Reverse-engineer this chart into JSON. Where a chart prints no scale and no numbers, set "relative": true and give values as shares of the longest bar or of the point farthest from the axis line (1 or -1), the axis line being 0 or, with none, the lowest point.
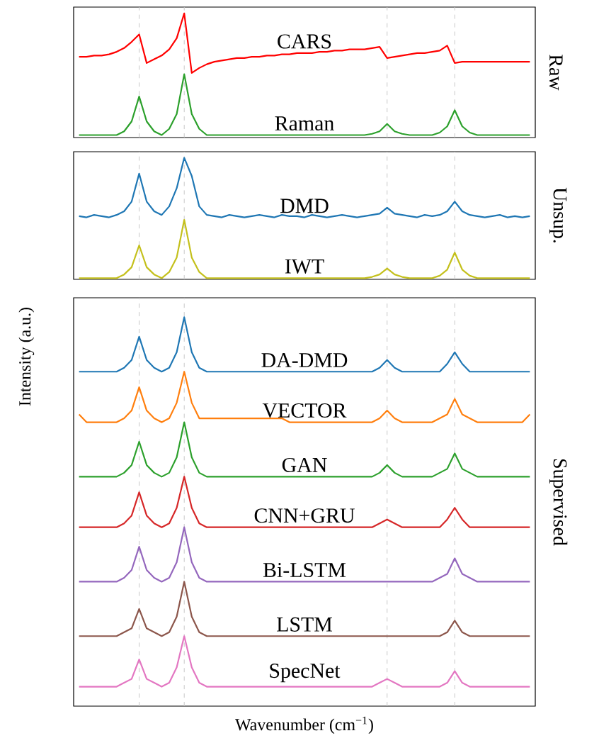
{
  "chart_data": [
    {
      "type": "line",
      "relative": true,
      "grid": "x",
      "y2label": "Raw",
      "categories": [
        null,
        null,
        null,
        null,
        null,
        null,
        null,
        null,
        null,
        null,
        null,
        null,
        null,
        null,
        null,
        null,
        null,
        null,
        null,
        null,
        null,
        null,
        null,
        null,
        null,
        null,
        null,
        null,
        null,
        null,
        null,
        null,
        null,
        null,
        null,
        null,
        null,
        null,
        null,
        null,
        null,
        null,
        null,
        null,
        null,
        null,
        null,
        null,
        null,
        null,
        null,
        null,
        null,
        null,
        null,
        null,
        null,
        null,
        null,
        null,
        null
      ],
      "series": [
        {
          "name": "CARS",
          "color": "#ff0000",
          "values": [
            0.65,
            0.65,
            0.66,
            0.66,
            0.67,
            0.69,
            0.72,
            0.77,
            0.83,
            0.6,
            0.63,
            0.66,
            0.71,
            0.8,
            1.0,
            0.52,
            0.56,
            0.59,
            0.61,
            0.62,
            0.63,
            0.64,
            0.64,
            0.65,
            0.65,
            0.66,
            0.66,
            0.67,
            0.67,
            0.68,
            0.68,
            0.68,
            0.69,
            0.69,
            0.7,
            0.7,
            0.71,
            0.71,
            0.71,
            0.72,
            0.73,
            0.64,
            0.65,
            0.66,
            0.67,
            0.68,
            0.68,
            0.69,
            0.7,
            0.74,
            0.6,
            0.61,
            0.61,
            0.61,
            0.61,
            0.61,
            0.61,
            0.61,
            0.61,
            0.61,
            0.61
          ]
        },
        {
          "name": "Raman",
          "color": "#2ca02c",
          "values": [
            0.02,
            0.02,
            0.02,
            0.02,
            0.02,
            0.02,
            0.05,
            0.13,
            0.33,
            0.13,
            0.05,
            0.02,
            0.07,
            0.19,
            0.51,
            0.19,
            0.07,
            0.02,
            0.02,
            0.02,
            0.02,
            0.02,
            0.02,
            0.02,
            0.02,
            0.02,
            0.02,
            0.02,
            0.02,
            0.02,
            0.02,
            0.02,
            0.02,
            0.02,
            0.02,
            0.02,
            0.02,
            0.02,
            0.02,
            0.03,
            0.05,
            0.11,
            0.05,
            0.03,
            0.02,
            0.02,
            0.02,
            0.02,
            0.04,
            0.09,
            0.22,
            0.09,
            0.04,
            0.02,
            0.02,
            0.02,
            0.02,
            0.02,
            0.02,
            0.02,
            0.02
          ]
        }
      ]
    },
    {
      "type": "line",
      "relative": true,
      "grid": "x",
      "y2label": "Unsup.",
      "ylabel": "Intensity (a.u.)",
      "categories": [
        null,
        null,
        null,
        null,
        null,
        null,
        null,
        null,
        null,
        null,
        null,
        null,
        null,
        null,
        null,
        null,
        null,
        null,
        null,
        null,
        null,
        null,
        null,
        null,
        null,
        null,
        null,
        null,
        null,
        null,
        null,
        null,
        null,
        null,
        null,
        null,
        null,
        null,
        null,
        null,
        null,
        null,
        null,
        null,
        null,
        null,
        null,
        null,
        null,
        null,
        null,
        null,
        null,
        null,
        null,
        null,
        null,
        null,
        null,
        null,
        null
      ],
      "series": [
        {
          "name": "DMD",
          "color": "#1f77b4",
          "values": [
            0.52,
            0.51,
            0.53,
            0.52,
            0.51,
            0.53,
            0.56,
            0.64,
            0.87,
            0.64,
            0.56,
            0.53,
            0.6,
            0.75,
            1.0,
            0.85,
            0.6,
            0.53,
            0.52,
            0.51,
            0.53,
            0.52,
            0.51,
            0.52,
            0.53,
            0.52,
            0.51,
            0.53,
            0.52,
            0.52,
            0.51,
            0.53,
            0.52,
            0.51,
            0.52,
            0.53,
            0.52,
            0.51,
            0.52,
            0.53,
            0.54,
            0.59,
            0.54,
            0.53,
            0.52,
            0.51,
            0.53,
            0.52,
            0.53,
            0.56,
            0.64,
            0.56,
            0.53,
            0.52,
            0.51,
            0.52,
            0.53,
            0.51,
            0.52,
            0.51,
            0.52
          ]
        },
        {
          "name": "IWT",
          "color": "#c4c01c",
          "values": [
            0.01,
            0.01,
            0.01,
            0.01,
            0.01,
            0.01,
            0.04,
            0.1,
            0.28,
            0.1,
            0.04,
            0.01,
            0.06,
            0.18,
            0.49,
            0.18,
            0.06,
            0.01,
            0.01,
            0.01,
            0.01,
            0.01,
            0.01,
            0.01,
            0.01,
            0.01,
            0.01,
            0.01,
            0.01,
            0.01,
            0.01,
            0.01,
            0.01,
            0.01,
            0.01,
            0.01,
            0.01,
            0.01,
            0.01,
            0.02,
            0.04,
            0.09,
            0.04,
            0.02,
            0.01,
            0.01,
            0.01,
            0.01,
            0.03,
            0.08,
            0.22,
            0.08,
            0.03,
            0.01,
            0.01,
            0.01,
            0.01,
            0.01,
            0.01,
            0.01,
            0.01
          ]
        }
      ]
    },
    {
      "type": "line",
      "relative": true,
      "grid": "x",
      "y2label": "Supervised",
      "xlabel": "Wavenumber (cm$^{−1}$)",
      "categories": [
        null,
        null,
        null,
        null,
        null,
        null,
        null,
        null,
        null,
        null,
        null,
        null,
        null,
        null,
        null,
        null,
        null,
        null,
        null,
        null,
        null,
        null,
        null,
        null,
        null,
        null,
        null,
        null,
        null,
        null,
        null,
        null,
        null,
        null,
        null,
        null,
        null,
        null,
        null,
        null,
        null,
        null,
        null,
        null,
        null,
        null,
        null,
        null,
        null,
        null,
        null,
        null,
        null,
        null,
        null,
        null,
        null,
        null,
        null,
        null,
        null
      ],
      "series": [
        {
          "name": "DA-DMD",
          "color": "#1f77b4",
          "values": [
            0.86,
            0.86,
            0.86,
            0.86,
            0.86,
            0.86,
            0.87,
            0.89,
            0.95,
            0.89,
            0.87,
            0.86,
            0.87,
            0.91,
            1.0,
            0.91,
            0.87,
            0.86,
            0.86,
            0.86,
            0.86,
            0.86,
            0.86,
            0.86,
            0.86,
            0.86,
            0.86,
            0.86,
            0.86,
            0.86,
            0.86,
            0.86,
            0.86,
            0.86,
            0.86,
            0.86,
            0.86,
            0.86,
            0.86,
            0.86,
            0.87,
            0.89,
            0.87,
            0.86,
            0.86,
            0.86,
            0.86,
            0.86,
            0.86,
            0.88,
            0.91,
            0.88,
            0.86,
            0.86,
            0.86,
            0.86,
            0.86,
            0.86,
            0.86,
            0.86,
            0.86
          ]
        },
        {
          "name": "VECTOR",
          "color": "#ff7f0e",
          "values": [
            0.75,
            0.73,
            0.73,
            0.73,
            0.73,
            0.73,
            0.74,
            0.76,
            0.82,
            0.76,
            0.74,
            0.73,
            0.74,
            0.78,
            0.86,
            0.78,
            0.74,
            0.74,
            0.74,
            0.74,
            0.74,
            0.74,
            0.74,
            0.74,
            0.74,
            0.74,
            0.74,
            0.74,
            0.73,
            0.73,
            0.73,
            0.73,
            0.73,
            0.73,
            0.73,
            0.73,
            0.73,
            0.73,
            0.73,
            0.73,
            0.74,
            0.76,
            0.74,
            0.73,
            0.73,
            0.73,
            0.73,
            0.73,
            0.74,
            0.75,
            0.79,
            0.75,
            0.74,
            0.73,
            0.73,
            0.73,
            0.73,
            0.73,
            0.73,
            0.73,
            0.75
          ]
        },
        {
          "name": "GAN",
          "color": "#2ca02c",
          "values": [
            0.59,
            0.59,
            0.59,
            0.59,
            0.59,
            0.59,
            0.6,
            0.62,
            0.68,
            0.62,
            0.6,
            0.59,
            0.6,
            0.64,
            0.73,
            0.64,
            0.6,
            0.59,
            0.59,
            0.59,
            0.59,
            0.59,
            0.59,
            0.59,
            0.59,
            0.59,
            0.59,
            0.59,
            0.59,
            0.59,
            0.59,
            0.59,
            0.59,
            0.59,
            0.59,
            0.59,
            0.59,
            0.59,
            0.59,
            0.59,
            0.6,
            0.62,
            0.6,
            0.59,
            0.59,
            0.59,
            0.59,
            0.59,
            0.6,
            0.61,
            0.65,
            0.61,
            0.6,
            0.59,
            0.59,
            0.59,
            0.59,
            0.59,
            0.59,
            0.59,
            0.59
          ]
        },
        {
          "name": "CNN+GRU",
          "color": "#d62728",
          "values": [
            0.46,
            0.46,
            0.46,
            0.46,
            0.46,
            0.46,
            0.47,
            0.49,
            0.55,
            0.49,
            0.47,
            0.46,
            0.47,
            0.51,
            0.59,
            0.51,
            0.47,
            0.46,
            0.46,
            0.46,
            0.46,
            0.46,
            0.46,
            0.46,
            0.46,
            0.46,
            0.46,
            0.46,
            0.46,
            0.46,
            0.46,
            0.46,
            0.46,
            0.46,
            0.46,
            0.46,
            0.46,
            0.46,
            0.46,
            0.46,
            0.47,
            0.48,
            0.47,
            0.46,
            0.46,
            0.46,
            0.46,
            0.46,
            0.46,
            0.48,
            0.51,
            0.48,
            0.46,
            0.46,
            0.46,
            0.46,
            0.46,
            0.46,
            0.46,
            0.46,
            0.46
          ]
        },
        {
          "name": "Bi-LSTM",
          "color": "#9467bd",
          "values": [
            0.32,
            0.32,
            0.32,
            0.32,
            0.32,
            0.32,
            0.33,
            0.35,
            0.41,
            0.35,
            0.33,
            0.32,
            0.33,
            0.37,
            0.46,
            0.37,
            0.33,
            0.32,
            0.32,
            0.32,
            0.32,
            0.32,
            0.32,
            0.32,
            0.32,
            0.32,
            0.32,
            0.32,
            0.32,
            0.32,
            0.32,
            0.32,
            0.32,
            0.32,
            0.32,
            0.32,
            0.32,
            0.32,
            0.32,
            0.32,
            0.32,
            0.32,
            0.32,
            0.32,
            0.32,
            0.32,
            0.32,
            0.32,
            0.33,
            0.34,
            0.38,
            0.34,
            0.33,
            0.32,
            0.32,
            0.32,
            0.32,
            0.32,
            0.32,
            0.32,
            0.32
          ]
        },
        {
          "name": "LSTM",
          "color": "#8c564b",
          "values": [
            0.18,
            0.18,
            0.18,
            0.18,
            0.18,
            0.18,
            0.19,
            0.2,
            0.25,
            0.2,
            0.19,
            0.18,
            0.19,
            0.23,
            0.32,
            0.23,
            0.19,
            0.18,
            0.18,
            0.18,
            0.18,
            0.18,
            0.18,
            0.18,
            0.18,
            0.18,
            0.18,
            0.18,
            0.18,
            0.18,
            0.18,
            0.18,
            0.18,
            0.18,
            0.18,
            0.18,
            0.18,
            0.18,
            0.18,
            0.18,
            0.18,
            0.18,
            0.18,
            0.18,
            0.18,
            0.18,
            0.18,
            0.18,
            0.18,
            0.19,
            0.22,
            0.19,
            0.18,
            0.18,
            0.18,
            0.18,
            0.18,
            0.18,
            0.18,
            0.18,
            0.18
          ]
        },
        {
          "name": "SpecNet",
          "color": "#e377c2",
          "values": [
            0.05,
            0.05,
            0.05,
            0.05,
            0.05,
            0.05,
            0.06,
            0.07,
            0.12,
            0.07,
            0.06,
            0.05,
            0.06,
            0.1,
            0.18,
            0.1,
            0.06,
            0.05,
            0.05,
            0.05,
            0.05,
            0.05,
            0.05,
            0.05,
            0.05,
            0.05,
            0.05,
            0.05,
            0.05,
            0.05,
            0.05,
            0.05,
            0.05,
            0.05,
            0.05,
            0.05,
            0.05,
            0.05,
            0.05,
            0.05,
            0.06,
            0.07,
            0.06,
            0.05,
            0.05,
            0.05,
            0.05,
            0.05,
            0.05,
            0.06,
            0.09,
            0.06,
            0.05,
            0.05,
            0.05,
            0.05,
            0.05,
            0.05,
            0.05,
            0.05,
            0.05
          ]
        }
      ]
    }
  ]
}
